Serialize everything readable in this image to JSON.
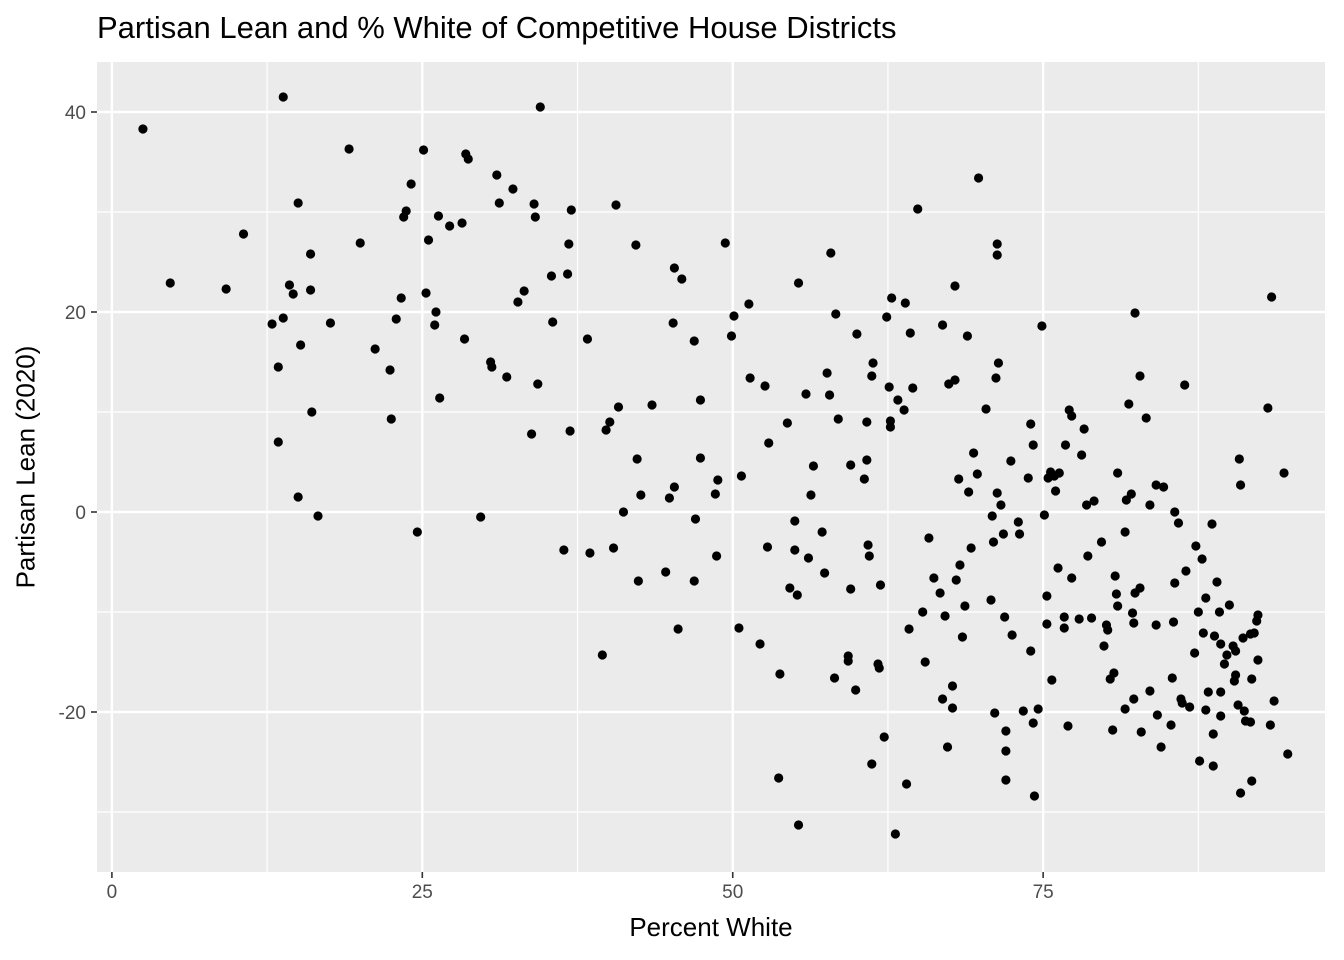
{
  "chart_data": {
    "type": "scatter",
    "title": "Partisan Lean and % White of Competitive House Districts",
    "xlabel": "Percent White",
    "ylabel": "Partisan Lean (2020)",
    "xlim": [
      -1.2,
      97.7
    ],
    "ylim": [
      -36,
      45
    ],
    "x_ticks": [
      0,
      25,
      50,
      75
    ],
    "y_ticks": [
      -20,
      0,
      20,
      40
    ],
    "x_tick_labels": [
      "0",
      "25",
      "50",
      "75"
    ],
    "y_tick_labels": [
      "-20",
      "0",
      "20",
      "40"
    ],
    "grid": true,
    "legend": "none",
    "colors": {
      "panel": "#ebebeb",
      "grid_major": "#ffffff",
      "point": "#000000",
      "tick_label": "#4d4d4d",
      "tick_mark": "#333333"
    },
    "points": [
      [
        2.5,
        38.3
      ],
      [
        4.7,
        22.9
      ],
      [
        9.2,
        22.3
      ],
      [
        10.6,
        27.8
      ],
      [
        12.9,
        18.8
      ],
      [
        13.4,
        14.5
      ],
      [
        13.4,
        7.0
      ],
      [
        13.8,
        19.4
      ],
      [
        14.3,
        22.7
      ],
      [
        14.6,
        21.8
      ],
      [
        13.8,
        41.5
      ],
      [
        15.0,
        30.9
      ],
      [
        15.2,
        16.7
      ],
      [
        15.0,
        1.5
      ],
      [
        16.0,
        25.8
      ],
      [
        16.0,
        22.2
      ],
      [
        16.1,
        10.0
      ],
      [
        16.6,
        -0.4
      ],
      [
        17.6,
        18.9
      ],
      [
        19.1,
        36.3
      ],
      [
        20.0,
        26.9
      ],
      [
        21.2,
        16.3
      ],
      [
        22.4,
        14.2
      ],
      [
        22.5,
        9.3
      ],
      [
        22.9,
        19.3
      ],
      [
        23.3,
        21.4
      ],
      [
        23.5,
        29.5
      ],
      [
        23.7,
        30.1
      ],
      [
        24.1,
        32.8
      ],
      [
        24.6,
        -2.0
      ],
      [
        25.1,
        36.2
      ],
      [
        25.3,
        21.9
      ],
      [
        25.5,
        27.2
      ],
      [
        26.0,
        18.7
      ],
      [
        26.1,
        20.0
      ],
      [
        26.3,
        29.6
      ],
      [
        26.4,
        11.4
      ],
      [
        27.2,
        28.6
      ],
      [
        28.2,
        28.9
      ],
      [
        28.4,
        17.3
      ],
      [
        28.5,
        35.8
      ],
      [
        28.7,
        35.3
      ],
      [
        29.7,
        -0.5
      ],
      [
        30.5,
        15.0
      ],
      [
        30.6,
        14.5
      ],
      [
        31.0,
        33.7
      ],
      [
        31.2,
        30.9
      ],
      [
        31.8,
        13.5
      ],
      [
        32.3,
        32.3
      ],
      [
        32.7,
        21.0
      ],
      [
        33.2,
        22.1
      ],
      [
        33.8,
        7.8
      ],
      [
        34.0,
        30.8
      ],
      [
        34.1,
        29.5
      ],
      [
        34.3,
        12.8
      ],
      [
        34.5,
        40.5
      ],
      [
        35.4,
        23.6
      ],
      [
        35.5,
        19.0
      ],
      [
        36.4,
        -3.8
      ],
      [
        36.7,
        23.8
      ],
      [
        36.8,
        26.8
      ],
      [
        37.0,
        30.2
      ],
      [
        36.9,
        8.1
      ],
      [
        38.3,
        17.3
      ],
      [
        38.5,
        -4.1
      ],
      [
        39.5,
        -14.3
      ],
      [
        39.8,
        8.2
      ],
      [
        40.1,
        9.0
      ],
      [
        40.4,
        -3.6
      ],
      [
        40.6,
        30.7
      ],
      [
        40.8,
        10.5
      ],
      [
        41.2,
        0.0
      ],
      [
        42.2,
        26.7
      ],
      [
        42.3,
        5.3
      ],
      [
        42.4,
        -6.9
      ],
      [
        42.6,
        1.7
      ],
      [
        43.5,
        10.7
      ],
      [
        44.6,
        -6.0
      ],
      [
        44.9,
        1.4
      ],
      [
        45.2,
        18.9
      ],
      [
        45.3,
        24.4
      ],
      [
        45.3,
        2.5
      ],
      [
        45.6,
        -11.7
      ],
      [
        45.9,
        23.3
      ],
      [
        46.9,
        17.1
      ],
      [
        46.9,
        -6.9
      ],
      [
        47.0,
        -0.7
      ],
      [
        47.4,
        11.2
      ],
      [
        47.4,
        5.4
      ],
      [
        48.6,
        1.8
      ],
      [
        48.7,
        -4.4
      ],
      [
        48.8,
        3.2
      ],
      [
        49.4,
        26.9
      ],
      [
        49.9,
        17.6
      ],
      [
        50.1,
        19.6
      ],
      [
        50.5,
        -11.6
      ],
      [
        50.7,
        3.6
      ],
      [
        51.3,
        20.8
      ],
      [
        51.4,
        13.4
      ],
      [
        52.2,
        -13.2
      ],
      [
        52.6,
        12.6
      ],
      [
        52.8,
        -3.5
      ],
      [
        52.9,
        6.9
      ],
      [
        53.7,
        -26.6
      ],
      [
        53.8,
        -16.2
      ],
      [
        54.4,
        8.9
      ],
      [
        54.6,
        -7.6
      ],
      [
        55.0,
        -0.9
      ],
      [
        55.0,
        -3.8
      ],
      [
        55.2,
        -8.3
      ],
      [
        55.3,
        22.9
      ],
      [
        55.3,
        -31.3
      ],
      [
        55.9,
        11.8
      ],
      [
        56.1,
        -4.6
      ],
      [
        56.3,
        1.7
      ],
      [
        56.5,
        4.6
      ],
      [
        57.2,
        -2.0
      ],
      [
        57.4,
        -6.1
      ],
      [
        57.6,
        13.9
      ],
      [
        57.8,
        11.7
      ],
      [
        57.9,
        25.9
      ],
      [
        58.2,
        -16.6
      ],
      [
        58.3,
        19.8
      ],
      [
        58.5,
        9.3
      ],
      [
        59.3,
        -14.9
      ],
      [
        59.3,
        -14.4
      ],
      [
        59.5,
        -7.7
      ],
      [
        59.5,
        4.7
      ],
      [
        59.9,
        -17.8
      ],
      [
        60.0,
        17.8
      ],
      [
        60.6,
        3.3
      ],
      [
        60.8,
        5.2
      ],
      [
        60.8,
        9.0
      ],
      [
        60.9,
        -3.3
      ],
      [
        61.0,
        -4.4
      ],
      [
        61.2,
        -25.2
      ],
      [
        61.2,
        13.6
      ],
      [
        61.3,
        14.9
      ],
      [
        61.7,
        -15.2
      ],
      [
        61.8,
        -15.6
      ],
      [
        61.9,
        -7.3
      ],
      [
        62.2,
        -22.5
      ],
      [
        62.4,
        19.5
      ],
      [
        62.6,
        12.5
      ],
      [
        62.7,
        8.5
      ],
      [
        62.7,
        9.1
      ],
      [
        62.8,
        21.4
      ],
      [
        63.1,
        -32.2
      ],
      [
        63.3,
        11.2
      ],
      [
        63.8,
        10.2
      ],
      [
        63.9,
        20.9
      ],
      [
        64.0,
        -27.2
      ],
      [
        64.2,
        -11.7
      ],
      [
        64.3,
        17.9
      ],
      [
        64.5,
        12.4
      ],
      [
        64.9,
        30.3
      ],
      [
        65.3,
        -10.0
      ],
      [
        65.5,
        -15.0
      ],
      [
        65.8,
        -2.6
      ],
      [
        66.2,
        -6.6
      ],
      [
        66.7,
        -8.1
      ],
      [
        66.9,
        18.7
      ],
      [
        66.9,
        -18.7
      ],
      [
        67.1,
        -10.4
      ],
      [
        67.3,
        -23.5
      ],
      [
        67.4,
        12.8
      ],
      [
        67.7,
        -17.4
      ],
      [
        67.9,
        13.2
      ],
      [
        67.9,
        22.6
      ],
      [
        67.7,
        -19.6
      ],
      [
        68.0,
        -6.8
      ],
      [
        68.2,
        3.3
      ],
      [
        68.3,
        -5.3
      ],
      [
        68.5,
        -12.5
      ],
      [
        68.7,
        -9.4
      ],
      [
        68.9,
        17.6
      ],
      [
        69.0,
        2.0
      ],
      [
        69.2,
        -3.6
      ],
      [
        69.4,
        5.9
      ],
      [
        69.7,
        3.8
      ],
      [
        69.8,
        33.4
      ],
      [
        70.4,
        10.3
      ],
      [
        70.8,
        -8.8
      ],
      [
        70.9,
        -0.4
      ],
      [
        71.0,
        -3.0
      ],
      [
        71.1,
        -20.1
      ],
      [
        71.2,
        13.4
      ],
      [
        71.3,
        1.9
      ],
      [
        71.4,
        14.9
      ],
      [
        71.3,
        25.7
      ],
      [
        71.3,
        26.8
      ],
      [
        71.6,
        0.7
      ],
      [
        71.8,
        -2.2
      ],
      [
        71.9,
        -10.5
      ],
      [
        72.0,
        -23.9
      ],
      [
        72.0,
        -26.8
      ],
      [
        72.0,
        -21.9
      ],
      [
        72.4,
        5.1
      ],
      [
        72.5,
        -12.3
      ],
      [
        73.0,
        -1.0
      ],
      [
        73.1,
        -2.2
      ],
      [
        73.4,
        -19.9
      ],
      [
        73.8,
        3.4
      ],
      [
        74.0,
        -13.9
      ],
      [
        74.0,
        8.8
      ],
      [
        74.2,
        6.7
      ],
      [
        74.2,
        -21.1
      ],
      [
        74.3,
        -28.4
      ],
      [
        74.6,
        -19.7
      ],
      [
        74.9,
        18.6
      ],
      [
        75.1,
        -0.3
      ],
      [
        75.3,
        -8.4
      ],
      [
        75.3,
        -11.2
      ],
      [
        75.4,
        3.4
      ],
      [
        75.6,
        4.0
      ],
      [
        75.7,
        -16.8
      ],
      [
        75.9,
        3.6
      ],
      [
        76.0,
        2.1
      ],
      [
        76.2,
        -5.6
      ],
      [
        76.3,
        3.9
      ],
      [
        76.7,
        -10.5
      ],
      [
        76.7,
        -11.6
      ],
      [
        76.8,
        6.7
      ],
      [
        77.0,
        -21.4
      ],
      [
        77.1,
        10.2
      ],
      [
        77.3,
        9.6
      ],
      [
        77.3,
        -6.6
      ],
      [
        77.9,
        -10.7
      ],
      [
        78.1,
        5.7
      ],
      [
        78.3,
        8.3
      ],
      [
        78.5,
        0.7
      ],
      [
        78.6,
        -4.4
      ],
      [
        78.9,
        -10.6
      ],
      [
        79.1,
        1.1
      ],
      [
        79.7,
        -3.0
      ],
      [
        79.9,
        -13.4
      ],
      [
        80.1,
        -11.3
      ],
      [
        80.2,
        -11.8
      ],
      [
        80.4,
        -16.7
      ],
      [
        80.6,
        -21.8
      ],
      [
        80.7,
        -16.1
      ],
      [
        80.8,
        -6.4
      ],
      [
        80.9,
        -8.2
      ],
      [
        81.0,
        -9.4
      ],
      [
        81.0,
        3.9
      ],
      [
        81.6,
        -19.7
      ],
      [
        81.6,
        -2.0
      ],
      [
        81.7,
        1.2
      ],
      [
        81.9,
        10.8
      ],
      [
        82.1,
        1.8
      ],
      [
        82.2,
        -10.1
      ],
      [
        82.3,
        -11.1
      ],
      [
        82.3,
        -18.7
      ],
      [
        82.4,
        19.9
      ],
      [
        82.4,
        -8.1
      ],
      [
        82.8,
        -7.6
      ],
      [
        82.8,
        13.6
      ],
      [
        82.9,
        -22.0
      ],
      [
        83.3,
        9.4
      ],
      [
        83.6,
        0.7
      ],
      [
        83.6,
        -17.9
      ],
      [
        84.1,
        -11.3
      ],
      [
        84.1,
        2.7
      ],
      [
        84.2,
        -20.3
      ],
      [
        84.5,
        -23.5
      ],
      [
        84.7,
        2.5
      ],
      [
        85.3,
        -21.3
      ],
      [
        85.4,
        -16.6
      ],
      [
        85.5,
        -11.0
      ],
      [
        85.6,
        0.0
      ],
      [
        85.6,
        -7.1
      ],
      [
        85.9,
        -1.1
      ],
      [
        86.1,
        -18.7
      ],
      [
        86.2,
        -19.1
      ],
      [
        86.4,
        12.7
      ],
      [
        86.5,
        -5.9
      ],
      [
        86.8,
        -19.5
      ],
      [
        87.2,
        -14.1
      ],
      [
        87.3,
        -3.4
      ],
      [
        87.5,
        -10.0
      ],
      [
        87.6,
        -24.9
      ],
      [
        87.9,
        -12.1
      ],
      [
        87.8,
        -4.7
      ],
      [
        88.1,
        -19.8
      ],
      [
        88.1,
        -8.6
      ],
      [
        88.3,
        -18.0
      ],
      [
        88.6,
        -1.2
      ],
      [
        88.7,
        -22.2
      ],
      [
        88.7,
        -25.4
      ],
      [
        88.8,
        -12.4
      ],
      [
        89.0,
        -7.0
      ],
      [
        89.2,
        -10.0
      ],
      [
        89.3,
        -18.0
      ],
      [
        89.3,
        -20.4
      ],
      [
        89.3,
        -13.2
      ],
      [
        89.6,
        -15.2
      ],
      [
        89.8,
        -14.3
      ],
      [
        90.0,
        -9.3
      ],
      [
        90.3,
        -13.4
      ],
      [
        90.4,
        -16.9
      ],
      [
        90.5,
        -16.3
      ],
      [
        90.5,
        -13.9
      ],
      [
        90.7,
        -19.3
      ],
      [
        90.8,
        5.3
      ],
      [
        90.9,
        -28.1
      ],
      [
        90.9,
        2.7
      ],
      [
        91.1,
        -12.6
      ],
      [
        91.2,
        -19.9
      ],
      [
        91.3,
        -20.9
      ],
      [
        91.7,
        -21.0
      ],
      [
        91.7,
        -12.2
      ],
      [
        91.8,
        -26.9
      ],
      [
        91.8,
        -16.7
      ],
      [
        92.0,
        -12.1
      ],
      [
        92.2,
        -10.9
      ],
      [
        92.3,
        -14.8
      ],
      [
        92.3,
        -10.3
      ],
      [
        93.1,
        10.4
      ],
      [
        93.3,
        -21.3
      ],
      [
        93.4,
        21.5
      ],
      [
        93.6,
        -18.9
      ],
      [
        94.4,
        3.9
      ],
      [
        94.7,
        -24.2
      ]
    ]
  }
}
